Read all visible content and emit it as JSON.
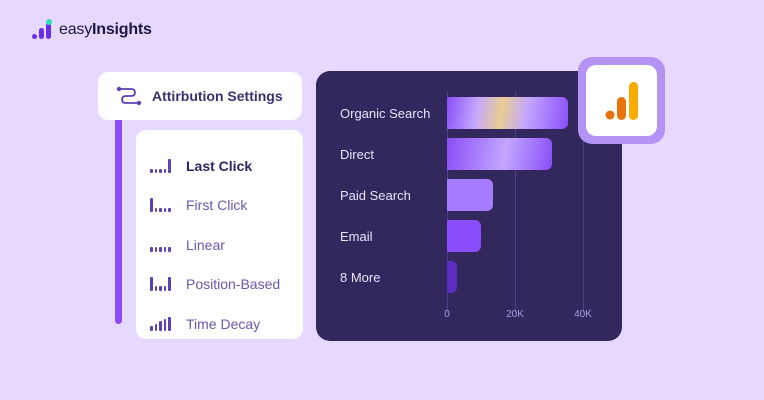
{
  "brand": {
    "name_light": "easy",
    "name_bold": "Insights",
    "logo_icon": "bar-chart-logo-icon",
    "colors": {
      "primary": "#6A2EE8",
      "accent": "#2DE0B5"
    }
  },
  "settings": {
    "header_icon": "route-icon",
    "title": "Attirbution Settings"
  },
  "attribution_models": [
    {
      "label": "Last Click",
      "icon": "last-click-bars-icon",
      "selected": true,
      "bars": [
        4,
        4,
        4,
        4,
        14
      ]
    },
    {
      "label": "First Click",
      "icon": "first-click-bars-icon",
      "selected": false,
      "bars": [
        14,
        4,
        4,
        4,
        4
      ]
    },
    {
      "label": "Linear",
      "icon": "linear-bars-icon",
      "selected": false,
      "bars": [
        5,
        5,
        5,
        5,
        5
      ]
    },
    {
      "label": "Position-Based",
      "icon": "position-based-bars-icon",
      "selected": false,
      "bars": [
        14,
        5,
        5,
        5,
        14
      ]
    },
    {
      "label": "Time Decay",
      "icon": "time-decay-bars-icon",
      "selected": false,
      "bars": [
        5,
        7,
        10,
        12,
        14
      ]
    }
  ],
  "chart": {
    "ticks": [
      "0",
      "20K",
      "40K"
    ],
    "badge_icon": "google-analytics-icon"
  },
  "chart_data": {
    "type": "bar",
    "orientation": "horizontal",
    "title": "",
    "xlabel": "",
    "ylabel": "",
    "categories": [
      "Organic Search",
      "Direct",
      "Paid Search",
      "Email",
      "8 More"
    ],
    "values": [
      35500,
      31000,
      13500,
      10000,
      3000
    ],
    "xlim": [
      0,
      45000
    ],
    "x_ticks": [
      "0",
      "20K",
      "40K"
    ],
    "grid": true,
    "colors": [
      "gradient #8A4DF7-#E8C98E",
      "gradient #8A4DF7-#C3A7FF",
      "#A77BFF",
      "#8B4CFB",
      "#5C2DC0"
    ]
  }
}
